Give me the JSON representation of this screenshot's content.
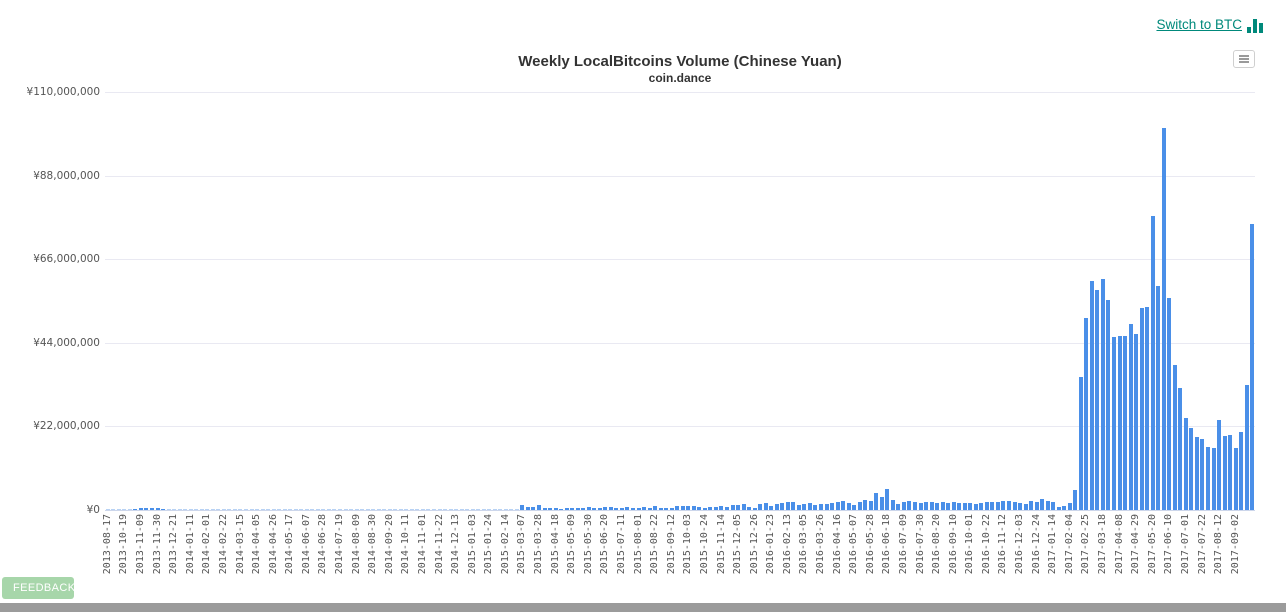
{
  "header": {
    "switch_label": "Switch to BTC",
    "accent_color": "#00897b"
  },
  "chart": {
    "title": "Weekly LocalBitcoins Volume (Chinese Yuan)",
    "subtitle": "coin.dance",
    "context_menu_icon": "hamburger-icon"
  },
  "footer": {
    "feedback_label": "FEEDBACK",
    "feedback_color": "#a7d6aa",
    "bottom_bar_color": "#9b9b9b"
  },
  "chart_data": {
    "type": "bar",
    "title": "Weekly LocalBitcoins Volume (Chinese Yuan)",
    "subtitle": "coin.dance",
    "xlabel": "",
    "ylabel": "",
    "currency_prefix": "¥",
    "ylim": [
      0,
      110000000
    ],
    "grid": "horizontal",
    "legend": "none",
    "bar_color": "#4a8fe8",
    "y_ticks": [
      0,
      22000000,
      44000000,
      66000000,
      88000000,
      110000000
    ],
    "y_tick_labels": [
      "¥0",
      "¥22,000,000",
      "¥44,000,000",
      "¥66,000,000",
      "¥88,000,000",
      "¥110,000,000"
    ],
    "x_tick_every_n_bars": 3,
    "x_tick_labels": [
      "2013-08-17",
      "2013-10-19",
      "2013-11-09",
      "2013-11-30",
      "2013-12-21",
      "2014-01-11",
      "2014-02-01",
      "2014-02-22",
      "2014-03-15",
      "2014-04-05",
      "2014-04-26",
      "2014-05-17",
      "2014-06-07",
      "2014-06-28",
      "2014-07-19",
      "2014-08-09",
      "2014-08-30",
      "2014-09-20",
      "2014-10-11",
      "2014-11-01",
      "2014-11-22",
      "2014-12-13",
      "2015-01-03",
      "2015-01-24",
      "2015-02-14",
      "2015-03-07",
      "2015-03-28",
      "2015-04-18",
      "2015-05-09",
      "2015-05-30",
      "2015-06-20",
      "2015-07-11",
      "2015-08-01",
      "2015-08-22",
      "2015-09-12",
      "2015-10-03",
      "2015-10-24",
      "2015-11-14",
      "2015-12-05",
      "2015-12-26",
      "2016-01-23",
      "2016-02-13",
      "2016-03-05",
      "2016-03-26",
      "2016-04-16",
      "2016-05-07",
      "2016-05-28",
      "2016-06-18",
      "2016-07-09",
      "2016-07-30",
      "2016-08-20",
      "2016-09-10",
      "2016-10-01",
      "2016-10-22",
      "2016-11-12",
      "2016-12-03",
      "2016-12-24",
      "2017-01-14",
      "2017-02-04",
      "2017-02-25",
      "2017-03-18",
      "2017-04-08",
      "2017-04-29",
      "2017-05-20",
      "2017-06-10",
      "2017-07-01",
      "2017-07-22",
      "2017-08-12",
      "2017-09-02"
    ],
    "values": [
      50000,
      50000,
      80000,
      100000,
      200000,
      350000,
      450000,
      500000,
      450000,
      400000,
      300000,
      250000,
      200000,
      150000,
      150000,
      120000,
      100000,
      100000,
      100000,
      80000,
      80000,
      100000,
      80000,
      80000,
      100000,
      80000,
      60000,
      80000,
      60000,
      60000,
      80000,
      60000,
      60000,
      60000,
      50000,
      50000,
      80000,
      60000,
      60000,
      80000,
      80000,
      60000,
      60000,
      50000,
      60000,
      80000,
      100000,
      100000,
      120000,
      120000,
      100000,
      150000,
      180000,
      150000,
      120000,
      100000,
      120000,
      120000,
      100000,
      100000,
      120000,
      100000,
      120000,
      120000,
      100000,
      120000,
      150000,
      120000,
      120000,
      150000,
      150000,
      120000,
      100000,
      100000,
      150000,
      1200000,
      800000,
      800000,
      1300000,
      450000,
      450000,
      450000,
      350000,
      500000,
      600000,
      600000,
      600000,
      700000,
      600000,
      500000,
      700000,
      700000,
      500000,
      500000,
      700000,
      500000,
      600000,
      700000,
      600000,
      1000000,
      600000,
      500000,
      500000,
      1000000,
      1100000,
      1000000,
      1000000,
      900000,
      500000,
      700000,
      900000,
      1000000,
      700000,
      1200000,
      1400000,
      1600000,
      900000,
      600000,
      1600000,
      1900000,
      1000000,
      1700000,
      1800000,
      2000000,
      2200000,
      1400000,
      1600000,
      1800000,
      1400000,
      1600000,
      1700000,
      1900000,
      2200000,
      2300000,
      1800000,
      1300000,
      2200000,
      2600000,
      2400000,
      4500000,
      3300000,
      5400000,
      2600000,
      1700000,
      2200000,
      2400000,
      2100000,
      1900000,
      2000000,
      2200000,
      1900000,
      2000000,
      1900000,
      2000000,
      1800000,
      1900000,
      1900000,
      1700000,
      1900000,
      2000000,
      2100000,
      2200000,
      2400000,
      2500000,
      2200000,
      1800000,
      1600000,
      2400000,
      2200000,
      2800000,
      2400000,
      2200000,
      700000,
      1000000,
      1900000,
      5300000,
      34900000,
      50600000,
      60300000,
      57800000,
      60900000,
      55200000,
      45500000,
      45900000,
      45900000,
      48900000,
      46200000,
      53100000,
      53300000,
      77400000,
      59000000,
      100500000,
      55700000,
      38100000,
      32100000,
      24100000,
      21700000,
      19300000,
      18700000,
      16700000,
      16200000,
      23700000,
      19500000,
      19700000,
      16400000,
      20600000,
      32800000,
      75200000
    ]
  }
}
